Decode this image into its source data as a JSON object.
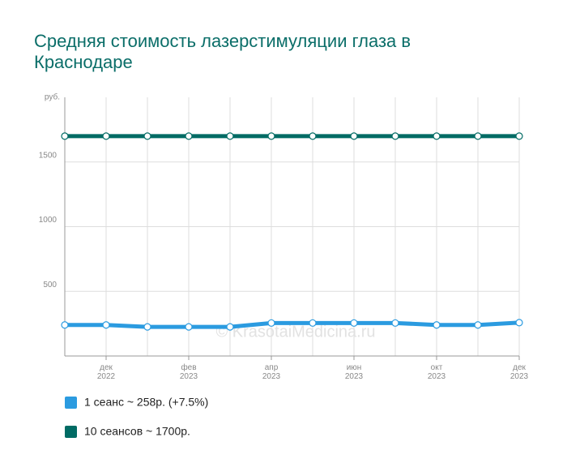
{
  "chart_data": {
    "type": "line",
    "title": "Средняя стоимость лазерстимуляции глаза в Краснодаре",
    "y_unit_label": "руб.",
    "watermark": "© KrasotaiMedicina.ru",
    "categories": [
      null,
      "дек 2022",
      null,
      "фев 2023",
      null,
      "апр 2023",
      null,
      "июн 2023",
      null,
      "окт 2023",
      null,
      "дек 2023"
    ],
    "series": [
      {
        "name": "1 сеанс ~ 258р. (+7.5%)",
        "color": "#2b9be0",
        "values": [
          240,
          240,
          225,
          225,
          225,
          255,
          255,
          255,
          255,
          240,
          240,
          258
        ]
      },
      {
        "name": "10 сеансов ~ 1700р.",
        "color": "#006b64",
        "values": [
          1700,
          1700,
          1700,
          1700,
          1700,
          1700,
          1700,
          1700,
          1700,
          1700,
          1700,
          1700
        ]
      }
    ],
    "ylim": [
      0,
      2000
    ],
    "yticks": [
      500,
      1000,
      1500
    ],
    "grid": true
  }
}
